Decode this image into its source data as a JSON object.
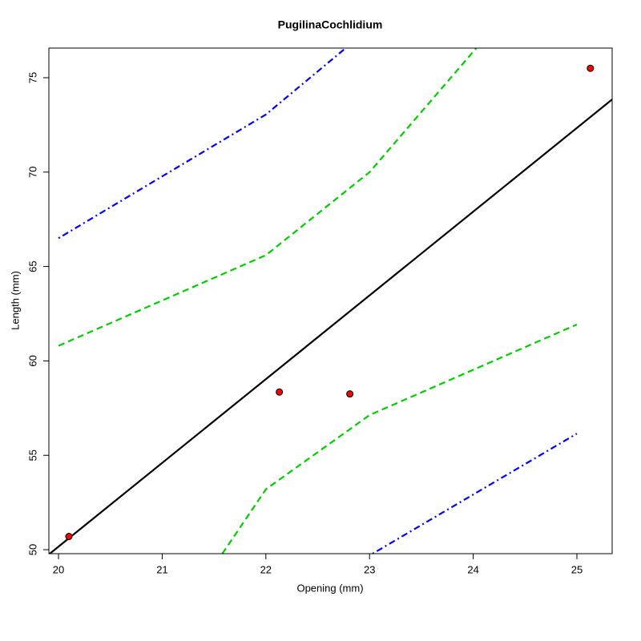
{
  "chart_data": {
    "type": "scatter",
    "title": "PugilinaCochlidium",
    "xlabel": "Opening (mm)",
    "ylabel": "Length (mm)",
    "xlim": [
      19.907,
      25.34
    ],
    "ylim": [
      49.79,
      76.57
    ],
    "xticks": [
      20,
      21,
      22,
      23,
      24,
      25
    ],
    "yticks": [
      50,
      55,
      60,
      65,
      70,
      75
    ],
    "series": [
      {
        "kind": "line",
        "color": "#0000ff",
        "dash": "dotdash",
        "x": [
          20,
          22,
          22.77
        ],
        "values": [
          66.5,
          73.05,
          76.57
        ]
      },
      {
        "kind": "line",
        "color": "#0000ff",
        "dash": "dotdash",
        "x": [
          23.03,
          25
        ],
        "values": [
          49.79,
          56.15
        ]
      },
      {
        "kind": "line",
        "color": "#00cd00",
        "dash": "dashed",
        "x": [
          20,
          22,
          23,
          24.03
        ],
        "values": [
          60.8,
          65.6,
          70.0,
          76.57
        ]
      },
      {
        "kind": "line",
        "color": "#00cd00",
        "dash": "dashed",
        "x": [
          21.58,
          22,
          23,
          25
        ],
        "values": [
          49.79,
          53.2,
          57.13,
          61.93
        ]
      },
      {
        "kind": "line",
        "color": "#000000",
        "dash": "solid",
        "x": [
          19.907,
          25.34
        ],
        "values": [
          49.75,
          73.85
        ]
      },
      {
        "kind": "points",
        "color": "#ff0000",
        "x": [
          20.1,
          22.13,
          22.81,
          25.13
        ],
        "values": [
          50.7,
          58.35,
          58.25,
          75.5
        ]
      }
    ]
  }
}
